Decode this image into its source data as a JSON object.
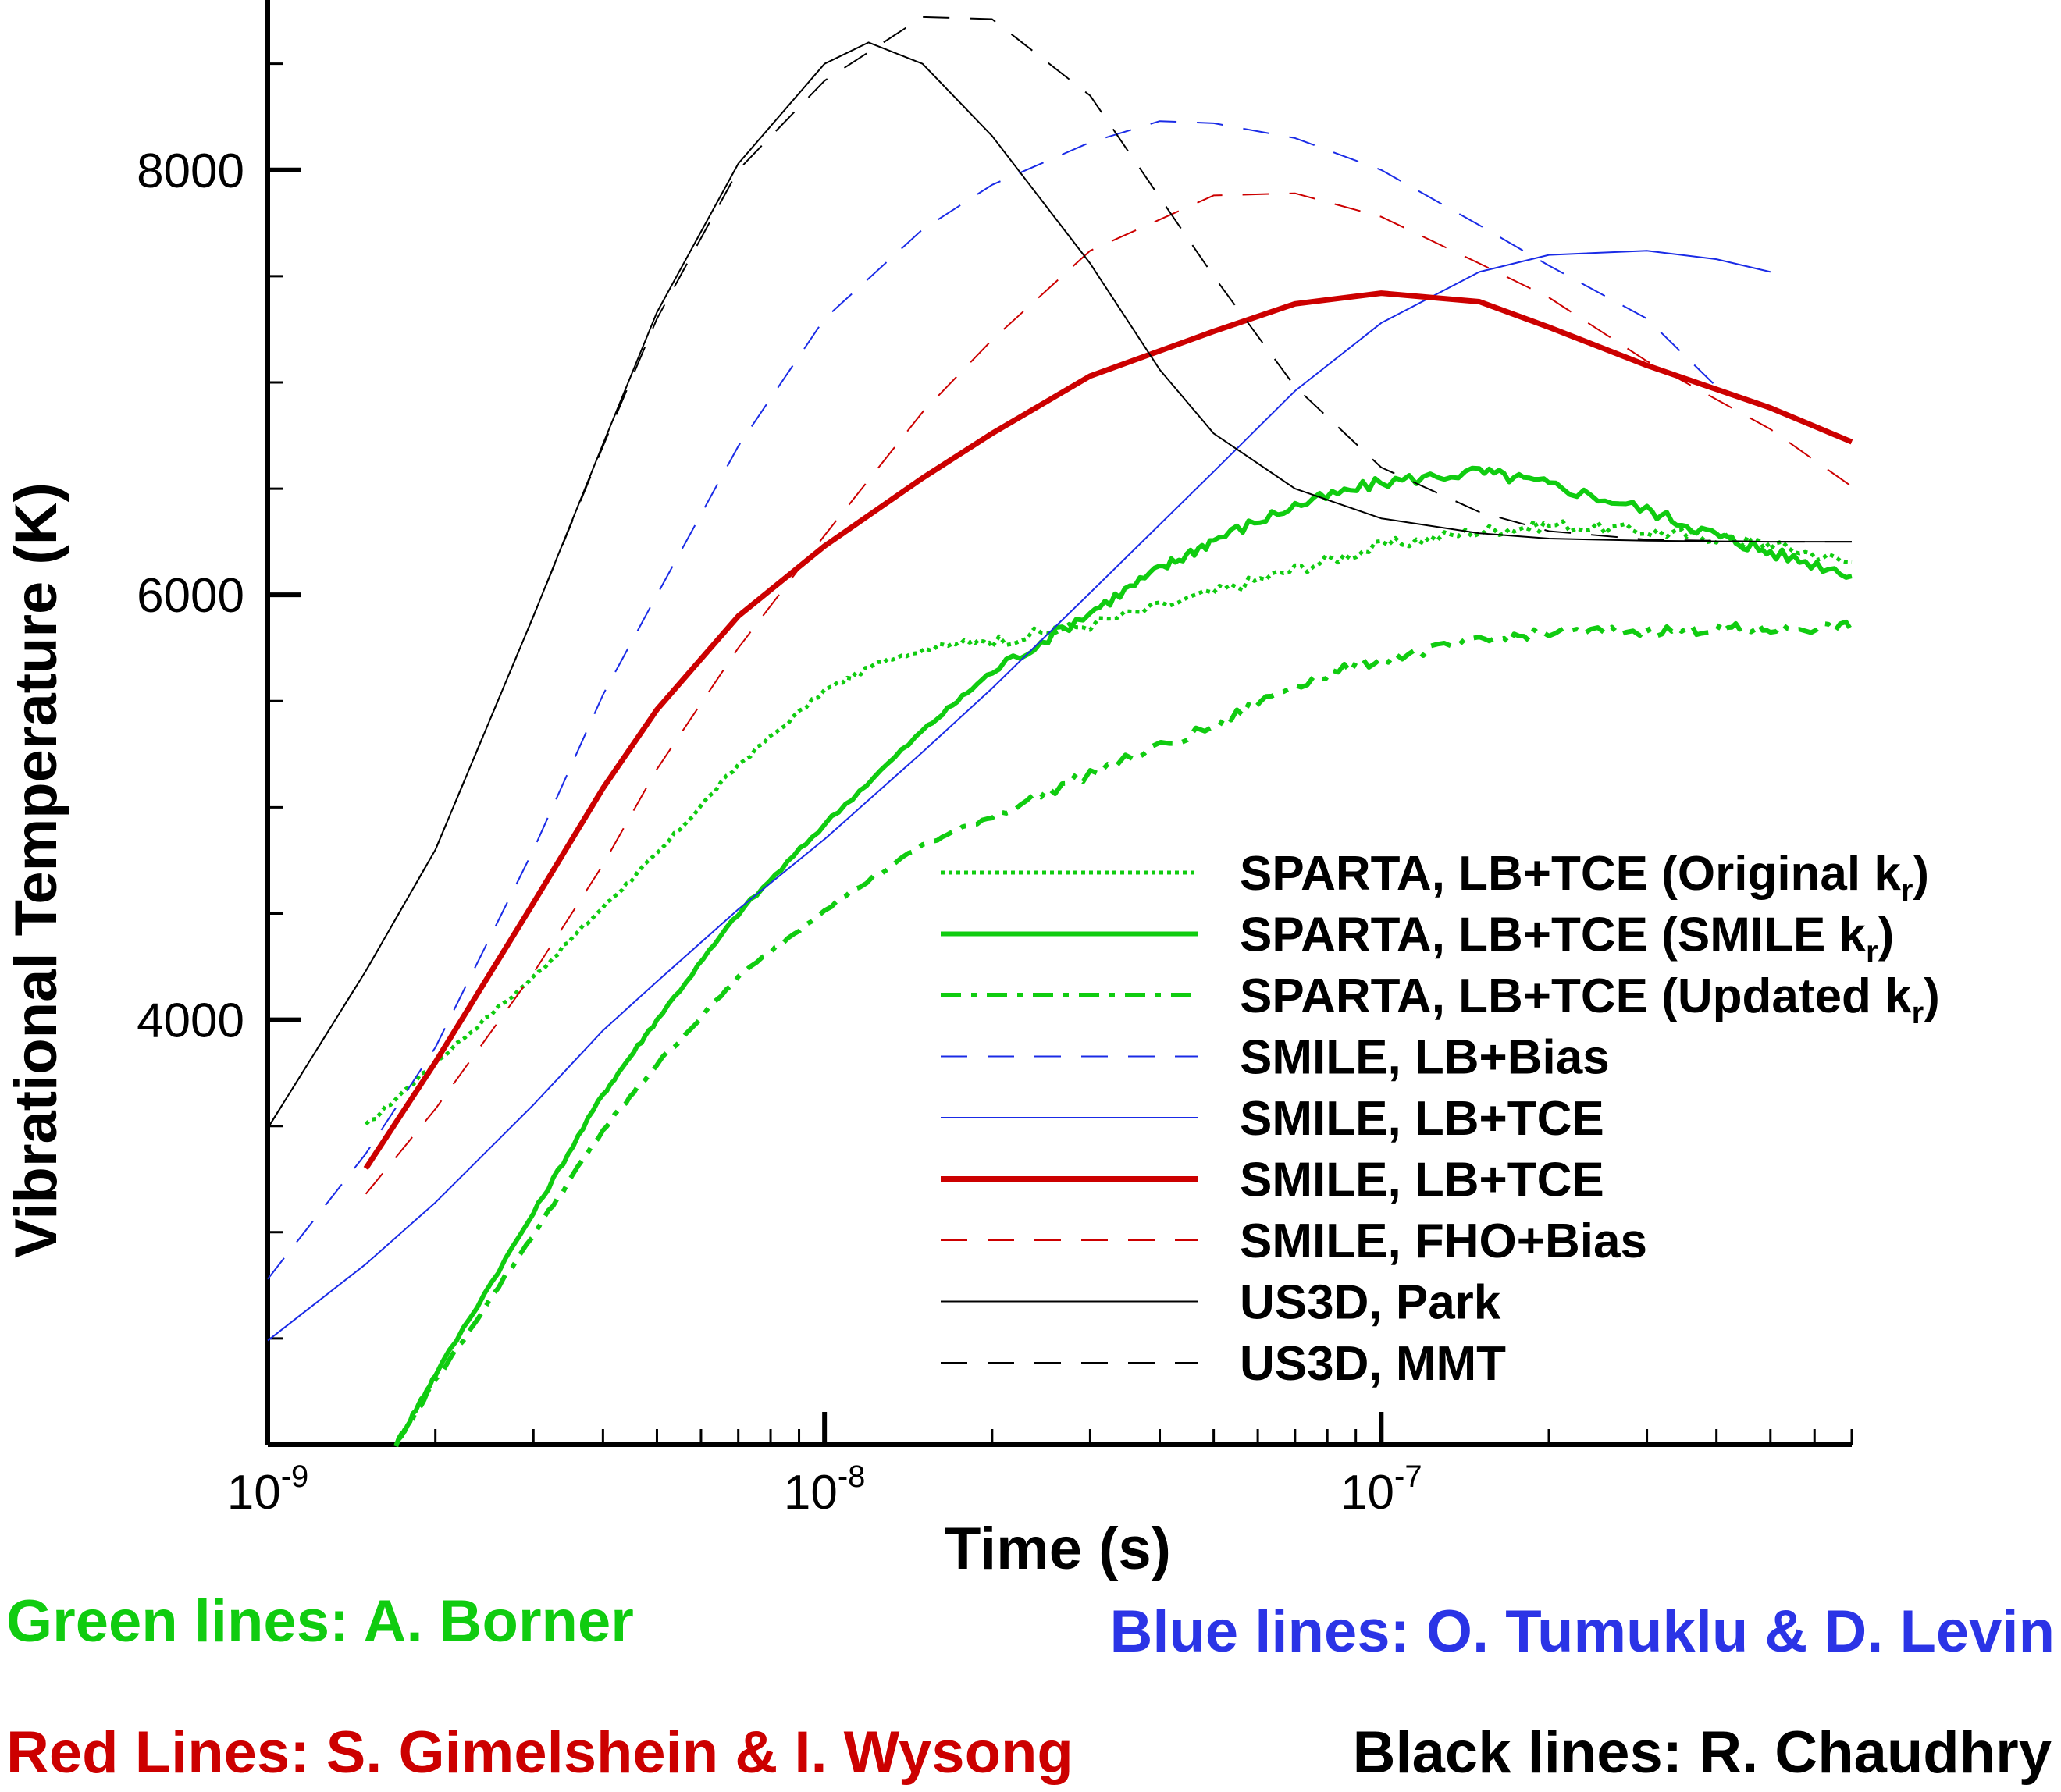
{
  "chart_data": {
    "type": "line",
    "xlabel": "Time (s)",
    "ylabel": "Vibrational Temperature (K)",
    "xscale": "log",
    "xlim": [
      1e-09,
      7e-07
    ],
    "ylim": [
      2000,
      8800
    ],
    "x_ticks": [
      {
        "value": 1e-09,
        "base": "10",
        "exp": "-9"
      },
      {
        "value": 1e-08,
        "base": "10",
        "exp": "-8"
      },
      {
        "value": 1e-07,
        "base": "10",
        "exp": "-7"
      }
    ],
    "y_ticks": [
      "4000",
      "6000",
      "8000"
    ],
    "legend_position": "lower-right",
    "series": [
      {
        "name": "SPARTA, LB+TCE (Original k",
        "sub": "r",
        "suffix": ")",
        "color": "#10cc10",
        "style": "dotted",
        "width": 5,
        "noise": 18,
        "points": [
          [
            1.5e-09,
            3500
          ],
          [
            2e-09,
            3800
          ],
          [
            3e-09,
            4200
          ],
          [
            4e-09,
            4530
          ],
          [
            5e-09,
            4780
          ],
          [
            7e-09,
            5200
          ],
          [
            1e-08,
            5550
          ],
          [
            1.3e-08,
            5700
          ],
          [
            1.7e-08,
            5775
          ],
          [
            2e-08,
            5780
          ],
          [
            3e-08,
            5860
          ],
          [
            5e-08,
            6010
          ],
          [
            7e-08,
            6120
          ],
          [
            1e-07,
            6230
          ],
          [
            1.5e-07,
            6300
          ],
          [
            2e-07,
            6330
          ],
          [
            3e-07,
            6300
          ],
          [
            4e-07,
            6270
          ],
          [
            5e-07,
            6240
          ],
          [
            7e-07,
            6150
          ]
        ]
      },
      {
        "name": "SPARTA, LB+TCE (SMILE k",
        "sub": "r",
        "suffix": ")",
        "color": "#10cc10",
        "style": "solid",
        "width": 6,
        "noise": 18,
        "points": [
          [
            1.7e-09,
            2000
          ],
          [
            2e-09,
            2330
          ],
          [
            3e-09,
            3090
          ],
          [
            4e-09,
            3650
          ],
          [
            5e-09,
            4000
          ],
          [
            7e-09,
            4500
          ],
          [
            1e-08,
            4920
          ],
          [
            1.5e-08,
            5360
          ],
          [
            2e-08,
            5640
          ],
          [
            3e-08,
            5920
          ],
          [
            4e-08,
            6120
          ],
          [
            5e-08,
            6260
          ],
          [
            7e-08,
            6420
          ],
          [
            1e-07,
            6530
          ],
          [
            1.5e-07,
            6580
          ],
          [
            2e-07,
            6520
          ],
          [
            3e-07,
            6400
          ],
          [
            4e-07,
            6280
          ],
          [
            5e-07,
            6200
          ],
          [
            7e-07,
            6100
          ]
        ]
      },
      {
        "name": "SPARTA, LB+TCE (Updated k",
        "sub": "r",
        "suffix": ")",
        "color": "#10cc10",
        "style": "dashdot",
        "width": 6,
        "noise": 16,
        "points": [
          [
            1.7e-09,
            2000
          ],
          [
            2e-09,
            2300
          ],
          [
            3e-09,
            2990
          ],
          [
            4e-09,
            3480
          ],
          [
            5e-09,
            3790
          ],
          [
            7e-09,
            4200
          ],
          [
            1e-08,
            4520
          ],
          [
            1.5e-08,
            4820
          ],
          [
            2e-08,
            4960
          ],
          [
            3e-08,
            5160
          ],
          [
            5e-08,
            5380
          ],
          [
            7e-08,
            5580
          ],
          [
            1e-07,
            5700
          ],
          [
            1.5e-07,
            5780
          ],
          [
            2e-07,
            5820
          ],
          [
            3e-07,
            5830
          ],
          [
            4e-07,
            5840
          ],
          [
            5e-07,
            5840
          ],
          [
            7e-07,
            5850
          ]
        ]
      },
      {
        "name": "SMILE, LB+Bias",
        "color": "#1a2be6",
        "style": "dashed",
        "width": 2,
        "points": [
          [
            1e-09,
            2780
          ],
          [
            1.5e-09,
            3370
          ],
          [
            2e-09,
            3870
          ],
          [
            3e-09,
            4800
          ],
          [
            4e-09,
            5530
          ],
          [
            5e-09,
            6000
          ],
          [
            7e-09,
            6700
          ],
          [
            1e-08,
            7300
          ],
          [
            1.5e-08,
            7720
          ],
          [
            2e-08,
            7930
          ],
          [
            3e-08,
            8130
          ],
          [
            4e-08,
            8230
          ],
          [
            5e-08,
            8220
          ],
          [
            7e-08,
            8150
          ],
          [
            1e-07,
            8000
          ],
          [
            1.5e-07,
            7740
          ],
          [
            2e-07,
            7550
          ],
          [
            3e-07,
            7300
          ],
          [
            4e-07,
            6980
          ]
        ]
      },
      {
        "name": "SMILE, LB+TCE",
        "color": "#1a2be6",
        "style": "solid",
        "width": 2,
        "points": [
          [
            1e-09,
            2490
          ],
          [
            1.5e-09,
            2850
          ],
          [
            2e-09,
            3140
          ],
          [
            3e-09,
            3600
          ],
          [
            4e-09,
            3950
          ],
          [
            5e-09,
            4180
          ],
          [
            7e-09,
            4520
          ],
          [
            1e-08,
            4850
          ],
          [
            1.5e-08,
            5260
          ],
          [
            2e-08,
            5560
          ],
          [
            3e-08,
            6010
          ],
          [
            5e-08,
            6580
          ],
          [
            7e-08,
            6960
          ],
          [
            1e-07,
            7280
          ],
          [
            1.5e-07,
            7520
          ],
          [
            2e-07,
            7600
          ],
          [
            3e-07,
            7620
          ],
          [
            4e-07,
            7580
          ],
          [
            5e-07,
            7520
          ]
        ]
      },
      {
        "name": "SMILE, LB+TCE",
        "color": "#cc0000",
        "style": "solid",
        "width": 7,
        "points": [
          [
            1.5e-09,
            3300
          ],
          [
            2e-09,
            3800
          ],
          [
            3e-09,
            4550
          ],
          [
            4e-09,
            5090
          ],
          [
            5e-09,
            5460
          ],
          [
            7e-09,
            5900
          ],
          [
            1e-08,
            6230
          ],
          [
            1.5e-08,
            6550
          ],
          [
            2e-08,
            6760
          ],
          [
            3e-08,
            7030
          ],
          [
            5e-08,
            7240
          ],
          [
            7e-08,
            7370
          ],
          [
            1e-07,
            7420
          ],
          [
            1.5e-07,
            7380
          ],
          [
            2e-07,
            7260
          ],
          [
            3e-07,
            7080
          ],
          [
            5e-07,
            6880
          ],
          [
            7e-07,
            6720
          ]
        ]
      },
      {
        "name": "SMILE, FHO+Bias",
        "color": "#cc0000",
        "style": "dashed",
        "width": 2,
        "points": [
          [
            1.5e-09,
            3180
          ],
          [
            2e-09,
            3580
          ],
          [
            3e-09,
            4220
          ],
          [
            4e-09,
            4730
          ],
          [
            5e-09,
            5180
          ],
          [
            7e-09,
            5750
          ],
          [
            1e-08,
            6280
          ],
          [
            1.5e-08,
            6860
          ],
          [
            2e-08,
            7200
          ],
          [
            3e-08,
            7620
          ],
          [
            5e-08,
            7880
          ],
          [
            7e-08,
            7890
          ],
          [
            1e-07,
            7780
          ],
          [
            1.5e-07,
            7560
          ],
          [
            2e-07,
            7400
          ],
          [
            3e-07,
            7100
          ],
          [
            5e-07,
            6780
          ],
          [
            7e-07,
            6510
          ]
        ]
      },
      {
        "name": "US3D, Park",
        "color": "#000000",
        "style": "solid",
        "width": 2,
        "points": [
          [
            1e-09,
            3490
          ],
          [
            1.5e-09,
            4230
          ],
          [
            2e-09,
            4800
          ],
          [
            3e-09,
            5900
          ],
          [
            4e-09,
            6710
          ],
          [
            5e-09,
            7330
          ],
          [
            7e-09,
            8030
          ],
          [
            1e-08,
            8500
          ],
          [
            1.2e-08,
            8600
          ],
          [
            1.5e-08,
            8500
          ],
          [
            2e-08,
            8160
          ],
          [
            3e-08,
            7560
          ],
          [
            4e-08,
            7060
          ],
          [
            5e-08,
            6760
          ],
          [
            7e-08,
            6500
          ],
          [
            1e-07,
            6360
          ],
          [
            1.5e-07,
            6290
          ],
          [
            2e-07,
            6265
          ],
          [
            3e-07,
            6255
          ],
          [
            5e-07,
            6250
          ],
          [
            7e-07,
            6250
          ]
        ]
      },
      {
        "name": "US3D, MMT",
        "color": "#000000",
        "style": "dashed",
        "width": 2,
        "points": [
          [
            1e-09,
            3490
          ],
          [
            1.5e-09,
            4230
          ],
          [
            2e-09,
            4800
          ],
          [
            3e-09,
            5900
          ],
          [
            4e-09,
            6700
          ],
          [
            5e-09,
            7300
          ],
          [
            7e-09,
            8000
          ],
          [
            1e-08,
            8420
          ],
          [
            1.5e-08,
            8720
          ],
          [
            2e-08,
            8710
          ],
          [
            3e-08,
            8350
          ],
          [
            5e-08,
            7500
          ],
          [
            7e-08,
            6980
          ],
          [
            1e-07,
            6600
          ],
          [
            1.5e-07,
            6390
          ],
          [
            2e-07,
            6300
          ],
          [
            3e-07,
            6260
          ],
          [
            5e-07,
            6250
          ],
          [
            7e-07,
            6250
          ]
        ]
      }
    ]
  },
  "credits": {
    "green": "Green lines: A. Borner",
    "blue": "Blue lines: O. Tumuklu & D. Levin",
    "red": "Red Lines: S. Gimelshein & I. Wysong",
    "black": "Black lines: R. Chaudhry",
    "green_color": "#10cc10",
    "blue_color": "#2b34e6",
    "red_color": "#cc0000",
    "black_color": "#000000"
  }
}
